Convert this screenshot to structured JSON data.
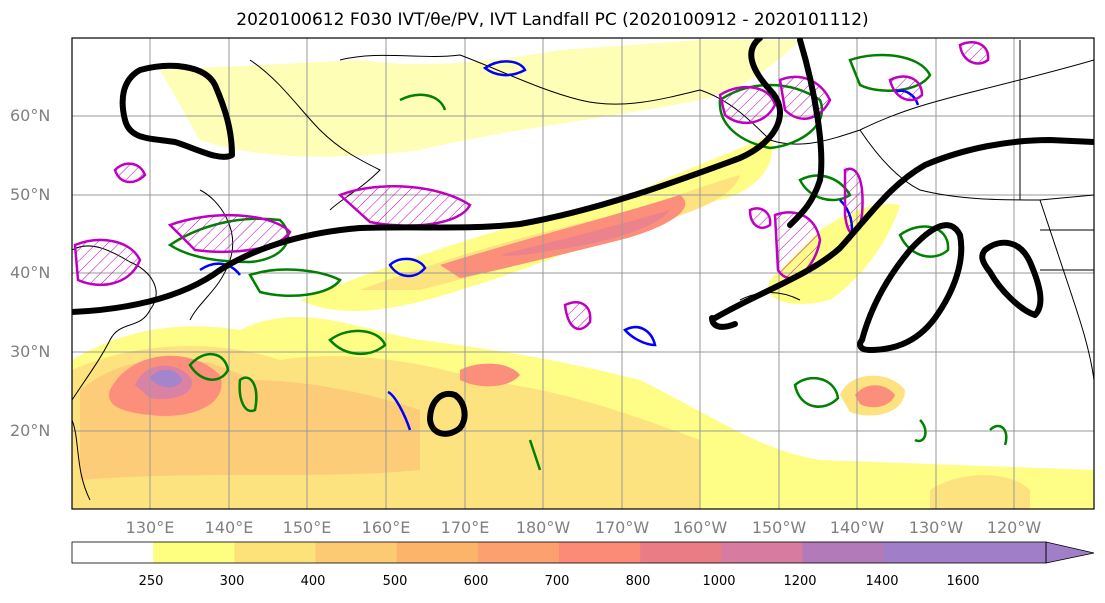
{
  "title": "2020100612 F030 IVT/θe/PV, IVT Landfall PC (2020100912 - 2020101112)",
  "lat_labels": [
    "60°N",
    "50°N",
    "40°N",
    "30°N",
    "20°N"
  ],
  "lon_labels": [
    "130°E",
    "140°E",
    "150°E",
    "160°E",
    "170°E",
    "180°W",
    "170°W",
    "160°W",
    "150°W",
    "140°W",
    "130°W",
    "120°W"
  ],
  "colorbar": {
    "labels": [
      "250",
      "300",
      "400",
      "500",
      "600",
      "700",
      "800",
      "1000",
      "1200",
      "1400",
      "1600"
    ],
    "colors": [
      "#ffffff",
      "#fefe80",
      "#fde27a",
      "#fcca72",
      "#fbb46a",
      "#fca070",
      "#fb8a76",
      "#ea7c86",
      "#d77ca0",
      "#b27ab8",
      "#a07ec8"
    ]
  },
  "contour_colors": {
    "landfall": "#000000",
    "pv_pos": "#008000",
    "pv_neg": "#0000ff",
    "theta": "#c000c0"
  }
}
